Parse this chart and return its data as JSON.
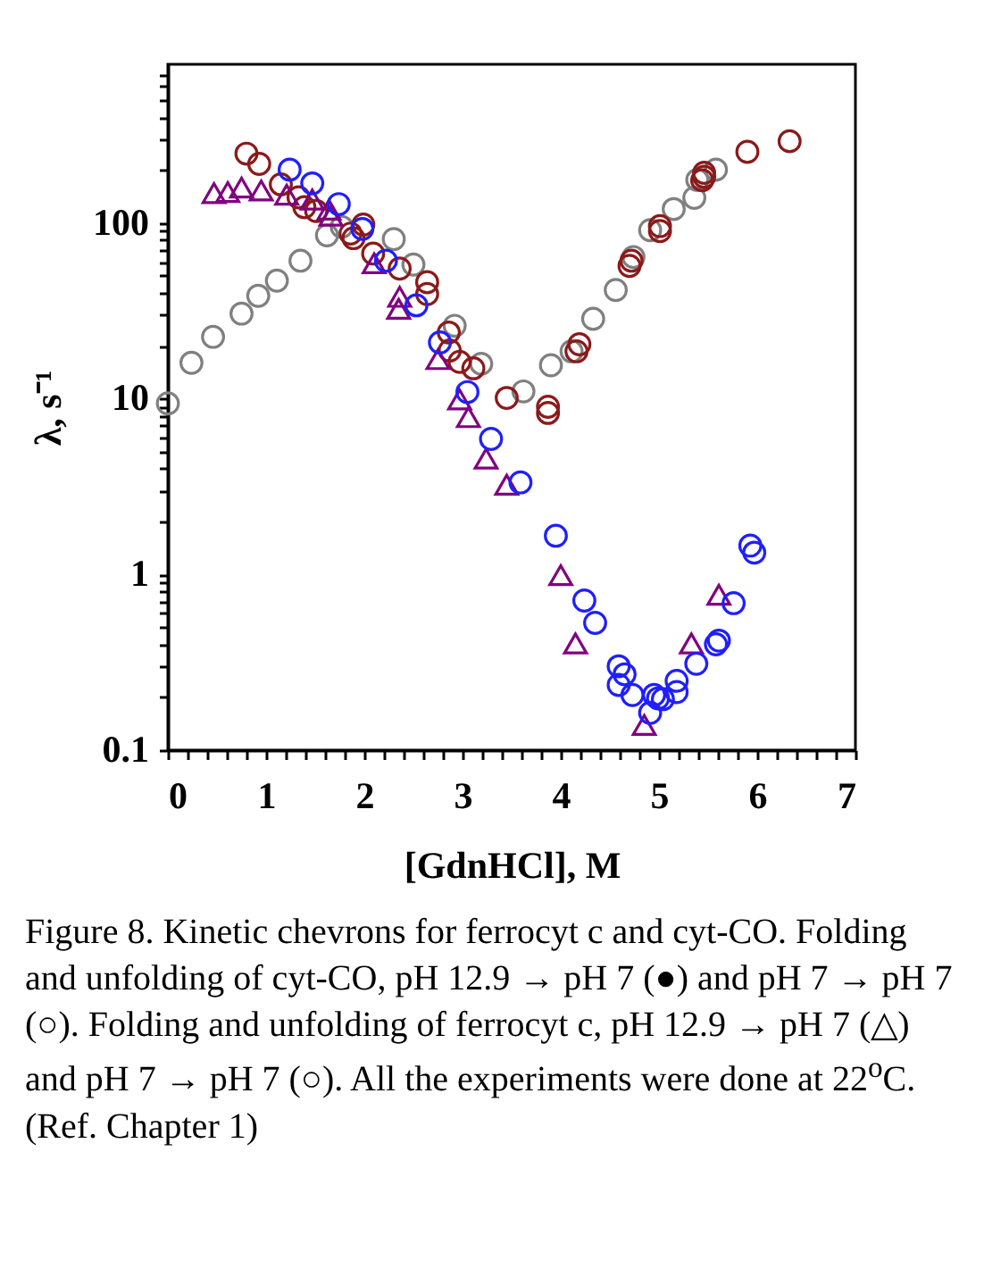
{
  "chart_data": {
    "type": "scatter",
    "xlabel": "[GdnHCl], M",
    "ylabel": "λ, s⁻¹",
    "log": "y",
    "xlim": [
      0,
      7
    ],
    "ylim": [
      0.1,
      800
    ],
    "xticks": [
      0,
      {
        "value": 0.2,
        "label": null
      },
      {
        "value": 0.4,
        "label": null
      },
      {
        "value": 0.6,
        "label": null
      },
      {
        "value": 0.8,
        "label": null
      },
      1,
      {
        "value": 1.2,
        "label": null
      },
      {
        "value": 1.4,
        "label": null
      },
      {
        "value": 1.6,
        "label": null
      },
      {
        "value": 1.8,
        "label": null
      },
      2,
      {
        "value": 2.2,
        "label": null
      },
      {
        "value": 2.4,
        "label": null
      },
      {
        "value": 2.6,
        "label": null
      },
      {
        "value": 2.8,
        "label": null
      },
      3,
      {
        "value": 3.2,
        "label": null
      },
      {
        "value": 3.4,
        "label": null
      },
      {
        "value": 3.6,
        "label": null
      },
      {
        "value": 3.8,
        "label": null
      },
      4,
      {
        "value": 4.2,
        "label": null
      },
      {
        "value": 4.4,
        "label": null
      },
      {
        "value": 4.6,
        "label": null
      },
      {
        "value": 4.8,
        "label": null
      },
      5,
      {
        "value": 5.2,
        "label": null
      },
      {
        "value": 5.4,
        "label": null
      },
      {
        "value": 5.6,
        "label": null
      },
      {
        "value": 5.8,
        "label": null
      },
      6,
      {
        "value": 6.2,
        "label": null
      },
      {
        "value": 6.4,
        "label": null
      },
      {
        "value": 6.6,
        "label": null
      },
      {
        "value": 6.8,
        "label": null
      },
      7
    ],
    "yticks": [
      0.1,
      {
        "value": 0.2,
        "label": null
      },
      {
        "value": 0.3,
        "label": null
      },
      {
        "value": 0.4,
        "label": null
      },
      {
        "value": 0.5,
        "label": null
      },
      {
        "value": 0.6,
        "label": null
      },
      {
        "value": 0.7,
        "label": null
      },
      {
        "value": 0.8,
        "label": null
      },
      {
        "value": 0.9,
        "label": null
      },
      1,
      {
        "value": 2,
        "label": null
      },
      {
        "value": 3,
        "label": null
      },
      {
        "value": 4,
        "label": null
      },
      {
        "value": 5,
        "label": null
      },
      {
        "value": 6,
        "label": null
      },
      {
        "value": 7,
        "label": null
      },
      {
        "value": 8,
        "label": null
      },
      {
        "value": 9,
        "label": null
      },
      10,
      {
        "value": 20,
        "label": null
      },
      {
        "value": 30,
        "label": null
      },
      {
        "value": 40,
        "label": null
      },
      {
        "value": 50,
        "label": null
      },
      {
        "value": 60,
        "label": null
      },
      {
        "value": 70,
        "label": null
      },
      {
        "value": 80,
        "label": null
      },
      {
        "value": 90,
        "label": null
      },
      100,
      {
        "value": 200,
        "label": null
      },
      {
        "value": 300,
        "label": null
      },
      {
        "value": 400,
        "label": null
      },
      {
        "value": 500,
        "label": null
      },
      {
        "value": 600,
        "label": null
      },
      {
        "value": 700,
        "label": null
      }
    ],
    "series": [
      {
        "color": "#808080",
        "marker": "circle",
        "x": [
          0,
          0.24,
          0.46,
          0.75,
          0.92,
          1.11,
          1.35,
          1.62,
          1.77,
          2.3,
          2.5,
          2.92,
          3.19,
          3.62,
          3.9,
          4.11,
          4.33,
          4.56,
          4.74,
          4.91,
          5.15,
          5.36,
          5.39,
          5.58
        ],
        "values": [
          9.4,
          16,
          22.5,
          30.5,
          38.5,
          47,
          61,
          85,
          95,
          81,
          58,
          26,
          15.8,
          11,
          15.5,
          18.6,
          28.5,
          41.6,
          64,
          91,
          120,
          139,
          176,
          201
        ]
      },
      {
        "color": "#8b1a1a",
        "marker": "circle",
        "x": [
          0.8,
          0.93,
          1.15,
          1.33,
          1.39,
          1.51,
          1.86,
          1.89,
          1.99,
          2.09,
          2.36,
          2.64,
          2.64,
          2.86,
          2.87,
          2.97,
          3.11,
          3.45,
          3.87,
          3.87,
          4.16,
          4.19,
          4.7,
          4.72,
          5.01,
          5.01,
          5.44,
          5.46,
          5.46,
          5.9,
          6.33
        ],
        "values": [
          248,
          217,
          166,
          140,
          123,
          117,
          87,
          82,
          98,
          67,
          55,
          46,
          39.4,
          23.8,
          18.8,
          16.2,
          14.9,
          10.1,
          9,
          8.3,
          18.6,
          20.4,
          57,
          61,
          90,
          96,
          175,
          183,
          193,
          254,
          292
        ]
      },
      {
        "color": "#800080",
        "marker": "triangle",
        "x": [
          0.47,
          0.61,
          0.75,
          0.95,
          1.21,
          1.47,
          1.64,
          1.66,
          2.1,
          2.36,
          2.35,
          2.75,
          2.97,
          3.06,
          3.24,
          3.45,
          4.0,
          4.15,
          4.85,
          5.33,
          5.61
        ],
        "values": [
          148,
          150,
          159,
          153,
          145,
          136,
          119,
          110,
          59,
          38,
          32.5,
          16.8,
          9.9,
          7.85,
          4.56,
          3.24,
          0.99,
          0.405,
          0.139,
          0.405,
          0.766
        ]
      },
      {
        "color": "#1f1fff",
        "marker": "circle",
        "x": [
          1.24,
          1.47,
          1.74,
          1.98,
          2.22,
          2.53,
          2.77,
          3.05,
          3.29,
          3.59,
          3.95,
          4.24,
          4.35,
          4.59,
          4.65,
          4.59,
          4.73,
          4.91,
          4.95,
          4.99,
          5.04,
          5.18,
          5.18,
          5.38,
          5.58,
          5.61,
          5.76,
          5.93,
          5.97
        ],
        "values": [
          201,
          168,
          128,
          92.5,
          61,
          34,
          20.9,
          10.9,
          5.9,
          3.34,
          1.66,
          0.71,
          0.53,
          0.3,
          0.27,
          0.235,
          0.206,
          0.163,
          0.206,
          0.197,
          0.195,
          0.248,
          0.214,
          0.31,
          0.4,
          0.42,
          0.686,
          1.46,
          1.33
        ]
      }
    ],
    "annotations": [
      "Figure 8. Kinetic chevrons for ferrocyt c and cyt-CO. Folding and unfolding of cyt-CO, pH 12.9 → pH 7 (●) and pH 7 → pH 7 (○). Folding and unfolding of ferrocyt c, pH 12.9 → pH 7 (△) and pH 7 → pH 7 (○). All the experiments were done at 22$^{o}$C. (Ref. Chapter 1)"
    ]
  }
}
